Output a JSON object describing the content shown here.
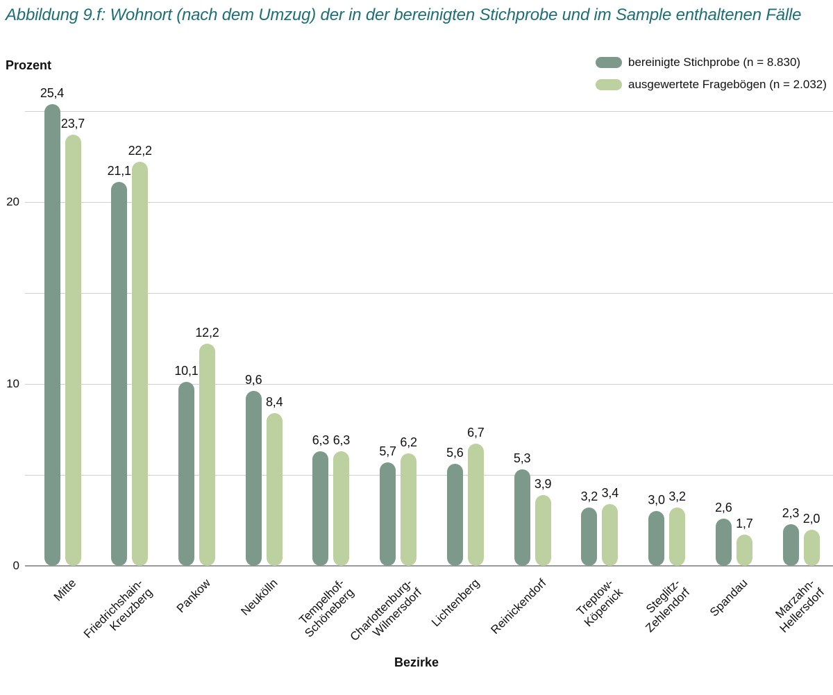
{
  "title": "Abbildung 9.f: Wohnort (nach dem Umzug) der in der bereinigten Stichprobe und im Sample enthaltenen Fälle",
  "colors": {
    "title": "#1e6f75",
    "series_dark": "#7d998c",
    "series_light": "#bdd0a0",
    "gridline": "#cfcfcf",
    "axis": "#9a9a9a"
  },
  "chart_data": {
    "type": "bar",
    "title": "Abbildung 9.f: Wohnort (nach dem Umzug) der in der bereinigten Stichprobe und im Sample enthaltenen Fälle",
    "ylabel": "Prozent",
    "xlabel": "Bezirke",
    "ylim": [
      0,
      26
    ],
    "yticks": [
      0,
      10,
      20
    ],
    "gridlines": [
      5,
      10,
      15,
      20,
      25
    ],
    "grid": true,
    "legend_position": "top-right",
    "categories": [
      "Mitte",
      "Friedrichshain-\nKreuzberg",
      "Pankow",
      "Neukölln",
      "Tempelhof-\nSchöneberg",
      "Charlottenburg-\nWilmersdorf",
      "Lichtenberg",
      "Reinickendorf",
      "Treptow-\nKöpenick",
      "Steglitz-\nZehlendorf",
      "Spandau",
      "Marzahn-\nHellersdorf"
    ],
    "series": [
      {
        "name": "bereinigte Stichprobe (n = 8.830)",
        "color": "#7d998c",
        "values": [
          25.4,
          21.1,
          10.1,
          9.6,
          6.3,
          5.7,
          5.6,
          5.3,
          3.2,
          3.0,
          2.6,
          2.3
        ]
      },
      {
        "name": "ausgewertete Fragebögen (n = 2.032)",
        "color": "#bdd0a0",
        "values": [
          23.7,
          22.2,
          12.2,
          8.4,
          6.3,
          6.2,
          6.7,
          3.9,
          3.4,
          3.2,
          1.7,
          2.0
        ]
      }
    ],
    "value_label_format": "german-comma-1dp"
  }
}
